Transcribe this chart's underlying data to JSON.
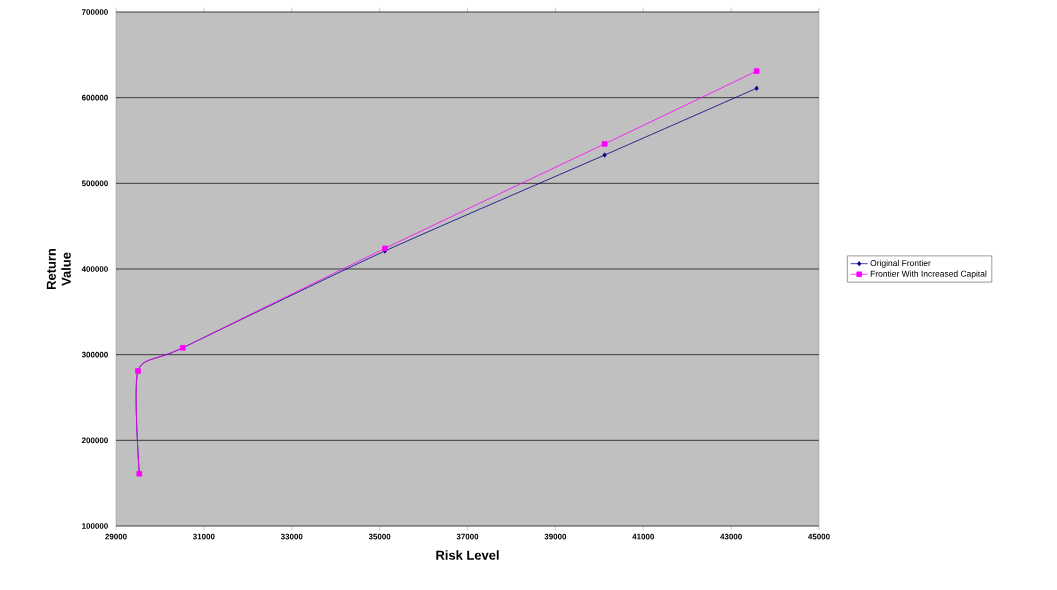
{
  "chart_data": {
    "type": "line",
    "xlabel": "Risk Level",
    "ylabel": "Return Value",
    "xlim": [
      29000,
      45000
    ],
    "ylim": [
      100000,
      700000
    ],
    "xticks": [
      29000,
      31000,
      33000,
      35000,
      37000,
      39000,
      41000,
      43000,
      45000
    ],
    "yticks": [
      100000,
      200000,
      300000,
      400000,
      500000,
      600000,
      700000
    ],
    "grid": "y",
    "legend": "right",
    "line_style": "solid",
    "series": [
      {
        "name": "Original Frontier",
        "color": "#000080",
        "marker": "diamond",
        "x": [
          29530,
          29500,
          30520,
          35120,
          40120,
          43580
        ],
        "values": [
          161000,
          281000,
          308000,
          421000,
          533000,
          611000
        ]
      },
      {
        "name": "Frontier With Increased Capital",
        "color": "#ff00ff",
        "marker": "square",
        "x": [
          29530,
          29500,
          30520,
          35120,
          40120,
          43580
        ],
        "values": [
          161000,
          281000,
          308000,
          424000,
          546000,
          631000
        ]
      }
    ]
  }
}
